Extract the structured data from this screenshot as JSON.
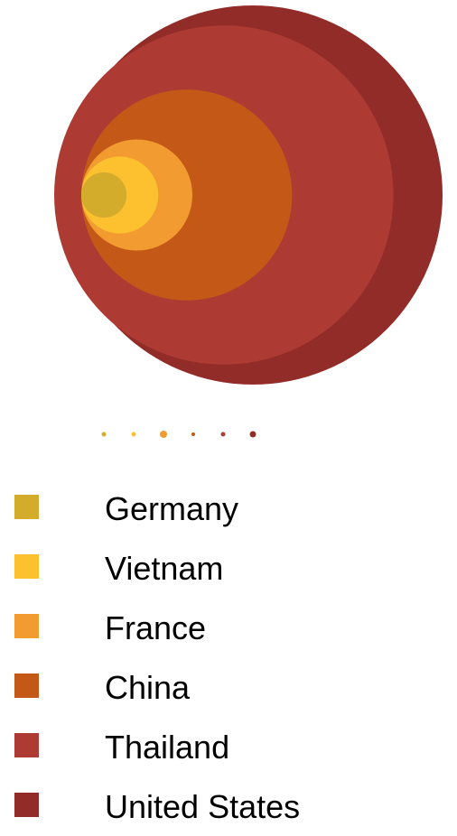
{
  "chart_data": {
    "type": "bubble",
    "title": "",
    "legend_position": "bottom",
    "series": [
      {
        "name": "Germany",
        "value": 25,
        "color": "#d4ac2c"
      },
      {
        "name": "Vietnam",
        "value": 72,
        "color": "#fdc12f"
      },
      {
        "name": "France",
        "value": 150,
        "color": "#f19b30"
      },
      {
        "name": "China",
        "value": 540,
        "color": "#c45917"
      },
      {
        "name": "Thailand",
        "value": 1400,
        "color": "#ad3b34"
      },
      {
        "name": "United States",
        "value": 1750,
        "color": "#922c28"
      }
    ]
  }
}
